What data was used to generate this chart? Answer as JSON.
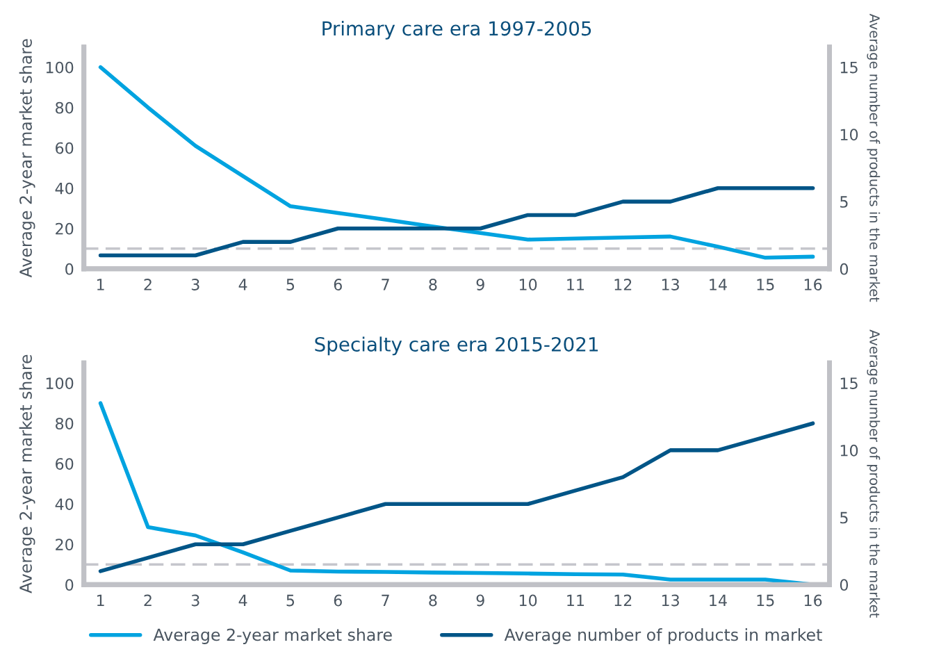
{
  "chart_data": [
    {
      "type": "line",
      "title": "Primary care era 1997-2005",
      "ylabel": "Average 2-year market share",
      "y2label": "Average number of products in the market",
      "categories": [
        "1",
        "2",
        "3",
        "4",
        "5",
        "6",
        "7",
        "8",
        "9",
        "10",
        "11",
        "12",
        "13",
        "14",
        "15",
        "16"
      ],
      "series": [
        {
          "color": "#00a3e0",
          "values": [
            100,
            80,
            61,
            46,
            31,
            27.7,
            24.4,
            21,
            17.8,
            14.5,
            15,
            15.5,
            16,
            11,
            5.5,
            6
          ]
        },
        {
          "color": "#005587",
          "axis": "y2",
          "values": [
            1,
            1,
            1,
            2,
            2,
            3,
            3,
            3,
            3,
            4,
            4,
            5,
            5,
            6,
            6,
            6
          ]
        }
      ],
      "ylim": [
        0,
        110
      ],
      "yticks": [
        0,
        20,
        40,
        60,
        80,
        100
      ],
      "y2lim": [
        0,
        16.5
      ],
      "y2ticks": [
        0,
        5,
        10,
        15
      ],
      "ref_lines": [
        {
          "axis": "y",
          "value": 10,
          "color": "#c5c6cc",
          "line_style": "dashed"
        }
      ],
      "grid": false,
      "legend": false,
      "marker": "none",
      "line_style": "solid"
    },
    {
      "type": "line",
      "title": "Specialty care era 2015-2021",
      "ylabel": "Average 2-year market share",
      "y2label": "Average number of products in the market",
      "categories": [
        "1",
        "2",
        "3",
        "4",
        "5",
        "6",
        "7",
        "8",
        "9",
        "10",
        "11",
        "12",
        "13",
        "14",
        "15",
        "16"
      ],
      "series": [
        {
          "name": "Average 2-year market share",
          "color": "#00a3e0",
          "values": [
            90,
            28.5,
            24.4,
            16,
            7,
            6.5,
            6.3,
            6,
            5.8,
            5.5,
            5.2,
            5,
            2.5,
            2.5,
            2.5,
            0
          ]
        },
        {
          "name": "Average number of products in market",
          "color": "#005587",
          "axis": "y2",
          "values": [
            1,
            2,
            3,
            3,
            4,
            5,
            6,
            6,
            6,
            6,
            7,
            8,
            10,
            10,
            11,
            12
          ]
        }
      ],
      "ylim": [
        0,
        110
      ],
      "yticks": [
        0,
        20,
        40,
        60,
        80,
        100
      ],
      "y2lim": [
        0,
        16.5
      ],
      "y2ticks": [
        0,
        5,
        10,
        15
      ],
      "ref_lines": [
        {
          "axis": "y",
          "value": 10,
          "color": "#c5c6cc",
          "line_style": "dashed"
        }
      ],
      "grid": false,
      "legend": "bottom",
      "marker": "none",
      "line_style": "solid"
    }
  ]
}
